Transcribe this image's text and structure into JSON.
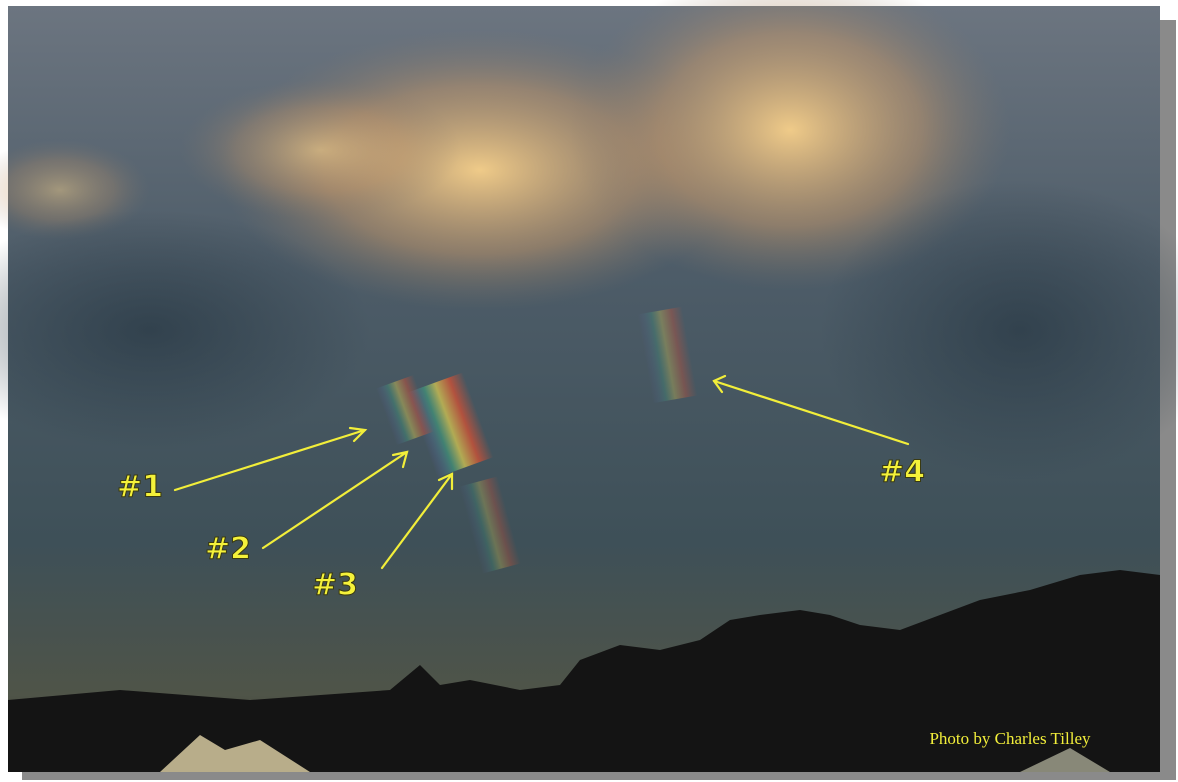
{
  "photo": {
    "labels": [
      "#1",
      "#2",
      "#3",
      "#4"
    ],
    "credit": "Photo by Charles Tilley"
  }
}
